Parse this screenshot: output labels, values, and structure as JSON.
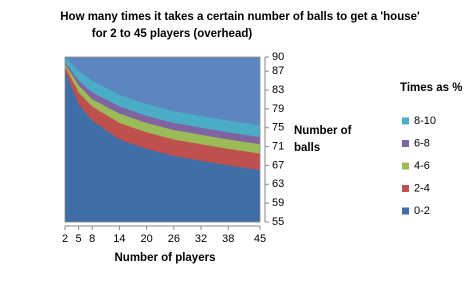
{
  "chart_data": {
    "type": "surface",
    "title": "How many times it takes a certain number of balls  to get a 'house'",
    "subtitle": "for 2 to 45 players (overhead)",
    "x_label": "Number of players",
    "y_label": [
      "Number of",
      "balls"
    ],
    "legend_title": "Times as %",
    "x": [
      2,
      5,
      8,
      14,
      20,
      26,
      32,
      38,
      45
    ],
    "xlim": [
      2,
      45
    ],
    "xticks": [
      2,
      5,
      8,
      14,
      20,
      26,
      32,
      38,
      45
    ],
    "ylim": [
      55,
      90
    ],
    "yticks": [
      55,
      59,
      63,
      67,
      71,
      75,
      79,
      83,
      87,
      90
    ],
    "background_color": "#5b86bf",
    "series": [
      {
        "name": "0-2",
        "color": "#3f6ea8",
        "values": [
          87,
          80,
          76.5,
          72.5,
          70.5,
          69,
          68,
          67,
          66
        ]
      },
      {
        "name": "2-4",
        "color": "#c0504d",
        "values": [
          88,
          82.5,
          79.5,
          76,
          74,
          72.5,
          71.5,
          70.5,
          69.5
        ]
      },
      {
        "name": "4-6",
        "color": "#9bbb59",
        "values": [
          88.5,
          84,
          81,
          78,
          76,
          74.5,
          73.5,
          72.5,
          71.5
        ]
      },
      {
        "name": "6-8",
        "color": "#8064a2",
        "values": [
          89,
          85,
          82.5,
          79.5,
          77.5,
          76,
          75,
          74,
          73
        ]
      },
      {
        "name": "8-10",
        "color": "#4bacc6",
        "values": [
          90,
          87,
          85,
          82,
          80,
          78.5,
          77.5,
          76.5,
          75.5
        ]
      }
    ]
  }
}
